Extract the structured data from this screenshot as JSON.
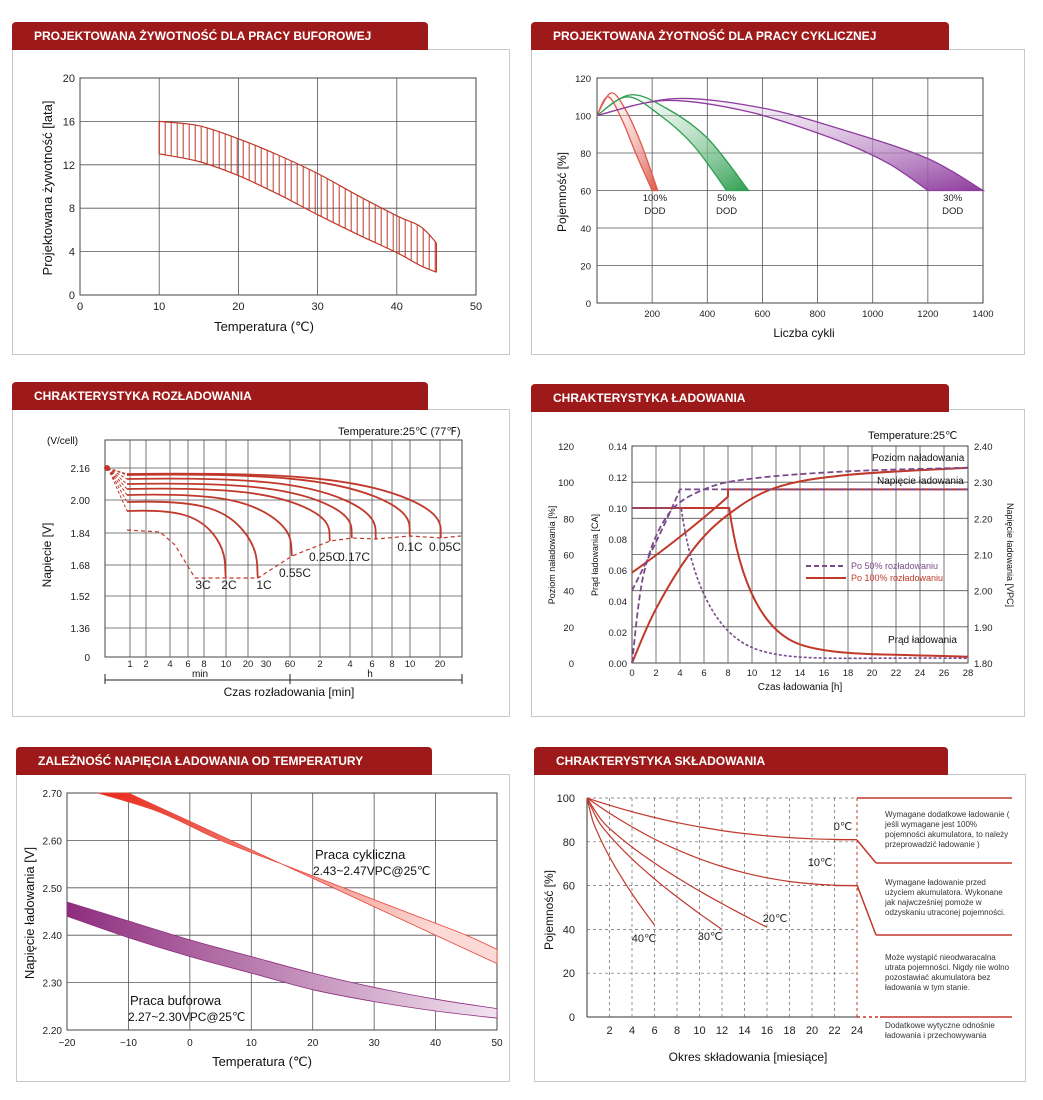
{
  "panels": [
    {
      "title": "PROJEKTOWANA ŻYWOTNOŚĆ DLA PRACY BUFOROWEJ"
    },
    {
      "title": "PROJEKTOWANA ŻYOTNOŚĆ DLA PRACY CYKLICZNEJ"
    },
    {
      "title": "CHRAKTERYSTYKA ROZŁADOWANIA"
    },
    {
      "title": "CHRAKTERYSTYKA ŁADOWANIA"
    },
    {
      "title": "ZALEŻNOŚĆ NAPIĘCIA ŁADOWANIA OD TEMPERATURY"
    },
    {
      "title": "CHRAKTERYSTYKA SKŁADOWANIA"
    }
  ],
  "chart_data": [
    {
      "type": "area",
      "xlabel": "Temperatura (℃)",
      "ylabel": "Projektowana żywotność [lata]",
      "xlim": [
        0,
        50
      ],
      "ylim": [
        0,
        20
      ],
      "x_ticks": [
        "0",
        "10",
        "20",
        "30",
        "40",
        "50"
      ],
      "y_ticks": [
        "0",
        "4",
        "8",
        "12",
        "16",
        "20"
      ],
      "grid": true,
      "series": [
        {
          "values_upper": [
            [
              10,
              16
            ],
            [
              15,
              15.6
            ],
            [
              20,
              14.4
            ],
            [
              25,
              12.9
            ],
            [
              30,
              11.2
            ],
            [
              35,
              9.2
            ],
            [
              40,
              7.3
            ],
            [
              43,
              6.3
            ],
            [
              45,
              4.8
            ]
          ],
          "values_lower": [
            [
              10,
              13
            ],
            [
              15,
              12.3
            ],
            [
              20,
              11
            ],
            [
              25,
              9.3
            ],
            [
              30,
              7.4
            ],
            [
              35,
              5.6
            ],
            [
              40,
              3.9
            ],
            [
              43,
              2.7
            ],
            [
              45,
              2.1
            ]
          ]
        }
      ],
      "color": "#c0392b"
    },
    {
      "type": "line",
      "xlabel": "Liczba cykli",
      "ylabel": "Pojemność [%]",
      "xlim": [
        0,
        1400
      ],
      "ylim": [
        0,
        120
      ],
      "x_ticks": [
        "200",
        "400",
        "600",
        "800",
        "1000",
        "1200",
        "1400"
      ],
      "y_ticks": [
        "0",
        "20",
        "40",
        "60",
        "80",
        "100",
        "120"
      ],
      "grid": true,
      "series": [
        {
          "name": "100% DOD",
          "color": "#e05a4e",
          "upper": [
            [
              0,
              100
            ],
            [
              50,
              112
            ],
            [
              100,
              104
            ],
            [
              160,
              85
            ],
            [
              220,
              60
            ]
          ],
          "lower": [
            [
              0,
              100
            ],
            [
              40,
              110
            ],
            [
              90,
              98
            ],
            [
              140,
              80
            ],
            [
              200,
              60
            ]
          ]
        },
        {
          "name": "50% DOD",
          "color": "#2e9e50",
          "upper": [
            [
              0,
              100
            ],
            [
              120,
              111
            ],
            [
              250,
              104
            ],
            [
              400,
              88
            ],
            [
              550,
              60
            ]
          ],
          "lower": [
            [
              0,
              100
            ],
            [
              110,
              110
            ],
            [
              230,
              100
            ],
            [
              350,
              84
            ],
            [
              470,
              60
            ]
          ]
        },
        {
          "name": "30% DOD",
          "color": "#8e3c9e",
          "upper": [
            [
              0,
              100
            ],
            [
              280,
              109
            ],
            [
              600,
              104
            ],
            [
              900,
              92
            ],
            [
              1200,
              77
            ],
            [
              1400,
              60
            ]
          ],
          "lower": [
            [
              0,
              100
            ],
            [
              250,
              108
            ],
            [
              550,
              102
            ],
            [
              850,
              88
            ],
            [
              1050,
              75
            ],
            [
              1200,
              60
            ]
          ]
        }
      ],
      "labels": [
        {
          "line1": "100%",
          "line2": "DOD",
          "x": 210
        },
        {
          "line1": "50%",
          "line2": "DOD",
          "x": 470
        },
        {
          "line1": "30%",
          "line2": "DOD",
          "x": 1290
        }
      ]
    },
    {
      "type": "line",
      "xlabel": "Czas rozładowania [min]",
      "ylabel": "Napięcie [V]",
      "y_unit": "(V/cell)",
      "annotation": "Temperature:25℃ (77℉)",
      "ylim": [
        0,
        2.24
      ],
      "y_ticks": [
        "0",
        "1.36",
        "1.52",
        "1.68",
        "1.84",
        "2.00",
        "2.16"
      ],
      "x_ticks": [
        "1",
        "2",
        "4",
        "6",
        "8",
        "10",
        "20",
        "30",
        "60",
        "2",
        "4",
        "6",
        "8",
        "10",
        "20"
      ],
      "x_unit_min": "min",
      "x_unit_h": "h",
      "rates": [
        "3C",
        "2C",
        "1C",
        "0.55C",
        "0.25C",
        "0.17C",
        "0.1C",
        "0.05C"
      ],
      "color": "#c0392b"
    },
    {
      "type": "line",
      "xlabel": "Czas ładowania [h]",
      "ylabel_left1": "Poziom naładowania [%]",
      "ylabel_left2": "Prąd ładowania [CA]",
      "ylabel_right": "Napięcie ładowania [VPC]",
      "annotation": "Temperature:25℃",
      "x_ticks": [
        "0",
        "2",
        "4",
        "6",
        "8",
        "10",
        "12",
        "14",
        "16",
        "18",
        "20",
        "22",
        "24",
        "26",
        "28"
      ],
      "y_ticks_pct": [
        "0",
        "20",
        "40",
        "60",
        "80",
        "100",
        "120"
      ],
      "y_ticks_ca": [
        "0.00",
        "0.02",
        "0.04",
        "0.06",
        "0.08",
        "0.10",
        "0.12",
        "0.14"
      ],
      "y_ticks_vpc": [
        "1.80",
        "1.90",
        "2.00",
        "2.10",
        "2.20",
        "2.30",
        "2.40"
      ],
      "curve_labels": [
        "Poziom naładowania",
        "Napięcie ładowania",
        "Prąd ładowania"
      ],
      "legend": [
        "Po 50% rozładowaniu",
        "Po 100% rozładowaniu"
      ],
      "series_colors": {
        "after50": "#7a4a8a",
        "after100": "#c0392b"
      }
    },
    {
      "type": "area",
      "xlabel": "Temperatura (℃)",
      "ylabel": "Napięcie ładowania [V]",
      "xlim": [
        -20,
        50
      ],
      "ylim": [
        2.2,
        2.7
      ],
      "x_ticks": [
        "−20",
        "−10",
        "0",
        "10",
        "20",
        "30",
        "40",
        "50"
      ],
      "y_ticks": [
        "2.20",
        "2.30",
        "2.40",
        "2.50",
        "2.60",
        "2.70"
      ],
      "series": [
        {
          "name": "Praca cykliczna",
          "spec": "2.43~2.47VPC@25℃",
          "color": "#e8463a",
          "upper": [
            [
              -15,
              2.72
            ],
            [
              -5,
              2.66
            ],
            [
              5,
              2.6
            ],
            [
              15,
              2.55
            ],
            [
              25,
              2.5
            ],
            [
              35,
              2.45
            ],
            [
              45,
              2.4
            ],
            [
              50,
              2.37
            ]
          ],
          "lower": [
            [
              -10,
              2.7
            ],
            [
              0,
              2.64
            ],
            [
              10,
              2.58
            ],
            [
              20,
              2.52
            ],
            [
              30,
              2.46
            ],
            [
              40,
              2.4
            ],
            [
              50,
              2.34
            ]
          ]
        },
        {
          "name": "Praca buforowa",
          "spec": "2.27~2.30VPC@25℃",
          "color": "#8e2d7e",
          "upper": [
            [
              -20,
              2.47
            ],
            [
              -10,
              2.43
            ],
            [
              0,
              2.39
            ],
            [
              10,
              2.355
            ],
            [
              20,
              2.32
            ],
            [
              30,
              2.29
            ],
            [
              40,
              2.265
            ],
            [
              50,
              2.245
            ]
          ],
          "lower": [
            [
              -20,
              2.44
            ],
            [
              -10,
              2.395
            ],
            [
              0,
              2.355
            ],
            [
              10,
              2.32
            ],
            [
              20,
              2.285
            ],
            [
              30,
              2.26
            ],
            [
              40,
              2.24
            ],
            [
              50,
              2.225
            ]
          ]
        }
      ]
    },
    {
      "type": "line",
      "xlabel": "Okres składowania [miesiące]",
      "ylabel": "Pojemność [%]",
      "xlim": [
        0,
        24
      ],
      "ylim": [
        0,
        100
      ],
      "x_ticks": [
        "2",
        "4",
        "6",
        "8",
        "10",
        "12",
        "14",
        "16",
        "18",
        "20",
        "22",
        "24"
      ],
      "y_ticks": [
        "0",
        "20",
        "40",
        "60",
        "80",
        "100"
      ],
      "series": [
        {
          "name": "0℃",
          "end": [
            24,
            81
          ]
        },
        {
          "name": "10℃",
          "end": [
            24,
            60
          ]
        },
        {
          "name": "20℃",
          "end": [
            16,
            41
          ]
        },
        {
          "name": "30℃",
          "end": [
            12,
            40
          ]
        },
        {
          "name": "40℃",
          "end": [
            6,
            42
          ]
        }
      ],
      "notes": [
        "Wymagane dodatkowe ładowanie ( jeśli wymagane jest 100% pojemności akumulatora, to należy przeprowadzić ładowanie )",
        "Wymagane ładowanie przed użyciem akumulatora. Wykonane jak najwcześniej pomoże w odzyskaniu utraconej pojemności.",
        "Może wystąpić nieodwaracalna utrata pojemności. Nigdy nie wolno pozostawiać akumulatora bez ładowania w tym stanie.",
        "Dodatkowe wytyczne odnośnie ładowania i przechowywania"
      ],
      "color": "#c0392b"
    }
  ]
}
